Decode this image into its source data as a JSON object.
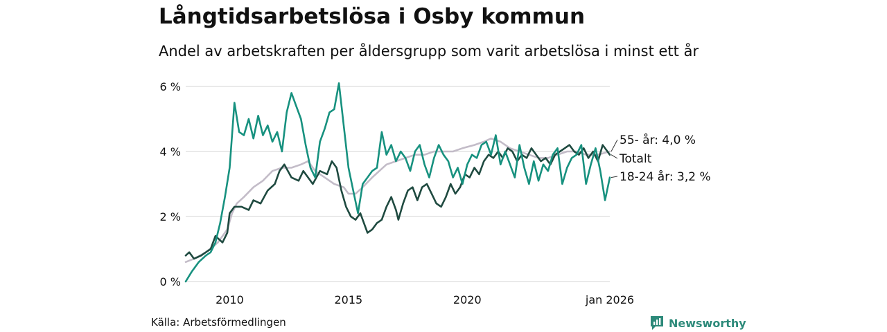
{
  "header": {
    "title": "Långtidsarbetslösa i Osby kommun",
    "subtitle": "Andel av arbetskraften per åldersgrupp som varit arbetslösa i minst ett år"
  },
  "footer": {
    "source": "Källa: Arbetsförmedlingen",
    "brand": "Newsworthy"
  },
  "colors": {
    "youth": "#17917f",
    "total": "#1f4a40",
    "senior": "#c3bcc8",
    "grid": "#dddddd",
    "brand": "#2d8a7a"
  },
  "chart_data": {
    "type": "line",
    "title": "Långtidsarbetslösa i Osby kommun",
    "xlabel": "",
    "ylabel": "",
    "xlim": [
      2008.15,
      2026.0
    ],
    "ylim": [
      0,
      6
    ],
    "y_ticks": [
      0,
      2,
      4,
      6
    ],
    "y_tick_labels": [
      "0 %",
      "2 %",
      "4 %",
      "6 %"
    ],
    "x_ticks": [
      2010,
      2015,
      2020,
      2026.0
    ],
    "x_tick_labels": [
      "2010",
      "2015",
      "2020",
      "jan 2026"
    ],
    "grid": true,
    "series": [
      {
        "name": "55- år",
        "color_key": "senior",
        "end_label": "55- år: 4,0 %",
        "points": [
          [
            2008.15,
            0.6
          ],
          [
            2008.5,
            0.7
          ],
          [
            2009.0,
            0.9
          ],
          [
            2009.5,
            1.2
          ],
          [
            2009.9,
            1.6
          ],
          [
            2010.1,
            2.1
          ],
          [
            2010.3,
            2.4
          ],
          [
            2010.6,
            2.6
          ],
          [
            2011.0,
            2.9
          ],
          [
            2011.4,
            3.1
          ],
          [
            2011.8,
            3.4
          ],
          [
            2012.2,
            3.5
          ],
          [
            2012.6,
            3.5
          ],
          [
            2013.0,
            3.6
          ],
          [
            2013.3,
            3.7
          ],
          [
            2013.6,
            3.4
          ],
          [
            2014.0,
            3.2
          ],
          [
            2014.4,
            3.0
          ],
          [
            2014.8,
            2.9
          ],
          [
            2015.0,
            2.7
          ],
          [
            2015.3,
            2.7
          ],
          [
            2015.6,
            2.9
          ],
          [
            2016.0,
            3.2
          ],
          [
            2016.3,
            3.4
          ],
          [
            2016.6,
            3.6
          ],
          [
            2017.0,
            3.7
          ],
          [
            2017.4,
            3.8
          ],
          [
            2017.8,
            3.9
          ],
          [
            2018.2,
            3.9
          ],
          [
            2018.6,
            4.0
          ],
          [
            2019.0,
            4.0
          ],
          [
            2019.4,
            4.0
          ],
          [
            2019.8,
            4.1
          ],
          [
            2020.3,
            4.2
          ],
          [
            2020.7,
            4.3
          ],
          [
            2021.0,
            4.4
          ],
          [
            2021.4,
            4.3
          ],
          [
            2021.8,
            4.1
          ],
          [
            2022.2,
            4.0
          ],
          [
            2022.6,
            3.9
          ],
          [
            2023.0,
            3.8
          ],
          [
            2023.4,
            3.8
          ],
          [
            2023.8,
            3.9
          ],
          [
            2024.2,
            4.0
          ],
          [
            2024.6,
            4.0
          ],
          [
            2025.0,
            3.9
          ],
          [
            2025.5,
            3.9
          ],
          [
            2026.0,
            4.0
          ]
        ]
      },
      {
        "name": "Totalt",
        "color_key": "total",
        "end_label": "Totalt",
        "points": [
          [
            2008.15,
            0.8
          ],
          [
            2008.3,
            0.9
          ],
          [
            2008.5,
            0.7
          ],
          [
            2008.8,
            0.8
          ],
          [
            2009.0,
            0.9
          ],
          [
            2009.2,
            1.0
          ],
          [
            2009.4,
            1.4
          ],
          [
            2009.7,
            1.2
          ],
          [
            2009.9,
            1.5
          ],
          [
            2010.0,
            2.1
          ],
          [
            2010.2,
            2.3
          ],
          [
            2010.5,
            2.3
          ],
          [
            2010.8,
            2.2
          ],
          [
            2011.0,
            2.5
          ],
          [
            2011.3,
            2.4
          ],
          [
            2011.6,
            2.8
          ],
          [
            2011.9,
            3.0
          ],
          [
            2012.1,
            3.4
          ],
          [
            2012.3,
            3.6
          ],
          [
            2012.6,
            3.2
          ],
          [
            2012.9,
            3.1
          ],
          [
            2013.1,
            3.4
          ],
          [
            2013.3,
            3.2
          ],
          [
            2013.5,
            3.0
          ],
          [
            2013.8,
            3.4
          ],
          [
            2014.1,
            3.3
          ],
          [
            2014.3,
            3.7
          ],
          [
            2014.5,
            3.5
          ],
          [
            2014.7,
            2.8
          ],
          [
            2014.9,
            2.3
          ],
          [
            2015.1,
            2.0
          ],
          [
            2015.3,
            1.9
          ],
          [
            2015.5,
            2.1
          ],
          [
            2015.6,
            1.9
          ],
          [
            2015.8,
            1.5
          ],
          [
            2016.0,
            1.6
          ],
          [
            2016.2,
            1.8
          ],
          [
            2016.4,
            1.9
          ],
          [
            2016.6,
            2.3
          ],
          [
            2016.8,
            2.6
          ],
          [
            2017.0,
            2.2
          ],
          [
            2017.1,
            1.9
          ],
          [
            2017.3,
            2.4
          ],
          [
            2017.5,
            2.8
          ],
          [
            2017.7,
            2.9
          ],
          [
            2017.9,
            2.5
          ],
          [
            2018.1,
            2.9
          ],
          [
            2018.3,
            3.0
          ],
          [
            2018.5,
            2.7
          ],
          [
            2018.7,
            2.4
          ],
          [
            2018.9,
            2.3
          ],
          [
            2019.1,
            2.6
          ],
          [
            2019.3,
            3.0
          ],
          [
            2019.5,
            2.7
          ],
          [
            2019.7,
            2.9
          ],
          [
            2019.9,
            3.3
          ],
          [
            2020.1,
            3.2
          ],
          [
            2020.3,
            3.5
          ],
          [
            2020.5,
            3.3
          ],
          [
            2020.7,
            3.7
          ],
          [
            2020.9,
            3.9
          ],
          [
            2021.1,
            3.8
          ],
          [
            2021.3,
            4.0
          ],
          [
            2021.5,
            3.8
          ],
          [
            2021.7,
            4.1
          ],
          [
            2021.9,
            4.0
          ],
          [
            2022.1,
            3.7
          ],
          [
            2022.3,
            3.9
          ],
          [
            2022.5,
            3.8
          ],
          [
            2022.7,
            4.1
          ],
          [
            2022.9,
            3.9
          ],
          [
            2023.1,
            3.7
          ],
          [
            2023.3,
            3.8
          ],
          [
            2023.5,
            3.6
          ],
          [
            2023.7,
            3.9
          ],
          [
            2023.9,
            4.0
          ],
          [
            2024.1,
            4.1
          ],
          [
            2024.3,
            4.2
          ],
          [
            2024.5,
            4.0
          ],
          [
            2024.7,
            3.9
          ],
          [
            2024.9,
            4.1
          ],
          [
            2025.1,
            3.8
          ],
          [
            2025.3,
            4.0
          ],
          [
            2025.5,
            3.7
          ],
          [
            2025.7,
            4.2
          ],
          [
            2025.9,
            4.0
          ],
          [
            2026.0,
            3.9
          ]
        ]
      },
      {
        "name": "18-24 år",
        "color_key": "youth",
        "end_label": "18-24 år: 3,2 %",
        "points": [
          [
            2008.15,
            0.0
          ],
          [
            2008.4,
            0.3
          ],
          [
            2008.7,
            0.6
          ],
          [
            2009.0,
            0.8
          ],
          [
            2009.2,
            0.9
          ],
          [
            2009.4,
            1.2
          ],
          [
            2009.6,
            1.8
          ],
          [
            2009.8,
            2.6
          ],
          [
            2010.0,
            3.5
          ],
          [
            2010.2,
            5.5
          ],
          [
            2010.4,
            4.6
          ],
          [
            2010.6,
            4.5
          ],
          [
            2010.8,
            5.0
          ],
          [
            2011.0,
            4.4
          ],
          [
            2011.2,
            5.1
          ],
          [
            2011.4,
            4.5
          ],
          [
            2011.6,
            4.8
          ],
          [
            2011.8,
            4.3
          ],
          [
            2012.0,
            4.6
          ],
          [
            2012.2,
            4.0
          ],
          [
            2012.4,
            5.2
          ],
          [
            2012.6,
            5.8
          ],
          [
            2012.8,
            5.4
          ],
          [
            2013.0,
            5.0
          ],
          [
            2013.2,
            4.2
          ],
          [
            2013.4,
            3.5
          ],
          [
            2013.6,
            3.2
          ],
          [
            2013.8,
            4.3
          ],
          [
            2014.0,
            4.7
          ],
          [
            2014.2,
            5.2
          ],
          [
            2014.4,
            5.3
          ],
          [
            2014.6,
            6.1
          ],
          [
            2014.8,
            4.8
          ],
          [
            2015.0,
            3.5
          ],
          [
            2015.2,
            2.8
          ],
          [
            2015.4,
            2.1
          ],
          [
            2015.6,
            3.0
          ],
          [
            2015.8,
            3.2
          ],
          [
            2016.0,
            3.4
          ],
          [
            2016.2,
            3.5
          ],
          [
            2016.4,
            4.6
          ],
          [
            2016.6,
            3.9
          ],
          [
            2016.8,
            4.2
          ],
          [
            2017.0,
            3.7
          ],
          [
            2017.2,
            4.0
          ],
          [
            2017.4,
            3.8
          ],
          [
            2017.6,
            3.4
          ],
          [
            2017.8,
            4.0
          ],
          [
            2018.0,
            4.2
          ],
          [
            2018.2,
            3.6
          ],
          [
            2018.4,
            3.2
          ],
          [
            2018.6,
            3.8
          ],
          [
            2018.8,
            4.2
          ],
          [
            2019.0,
            3.9
          ],
          [
            2019.2,
            3.7
          ],
          [
            2019.4,
            3.2
          ],
          [
            2019.6,
            3.5
          ],
          [
            2019.8,
            3.0
          ],
          [
            2020.0,
            3.6
          ],
          [
            2020.2,
            3.9
          ],
          [
            2020.4,
            3.8
          ],
          [
            2020.6,
            4.2
          ],
          [
            2020.8,
            4.3
          ],
          [
            2021.0,
            3.9
          ],
          [
            2021.2,
            4.5
          ],
          [
            2021.4,
            3.6
          ],
          [
            2021.6,
            4.0
          ],
          [
            2021.8,
            3.6
          ],
          [
            2022.0,
            3.2
          ],
          [
            2022.2,
            4.2
          ],
          [
            2022.4,
            3.5
          ],
          [
            2022.6,
            3.0
          ],
          [
            2022.8,
            3.7
          ],
          [
            2023.0,
            3.1
          ],
          [
            2023.2,
            3.6
          ],
          [
            2023.4,
            3.4
          ],
          [
            2023.6,
            3.9
          ],
          [
            2023.8,
            4.1
          ],
          [
            2024.0,
            3.0
          ],
          [
            2024.2,
            3.5
          ],
          [
            2024.4,
            3.8
          ],
          [
            2024.6,
            3.9
          ],
          [
            2024.8,
            4.2
          ],
          [
            2025.0,
            3.0
          ],
          [
            2025.2,
            3.6
          ],
          [
            2025.4,
            4.1
          ],
          [
            2025.6,
            3.4
          ],
          [
            2025.8,
            2.5
          ],
          [
            2026.0,
            3.2
          ]
        ]
      }
    ]
  }
}
